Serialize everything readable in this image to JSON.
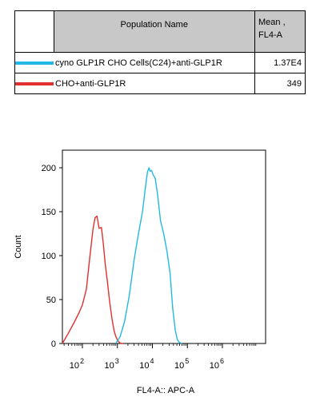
{
  "legend": {
    "header_name": "Population Name",
    "header_mean_line1": "Mean ,",
    "header_mean_line2": "FL4-A",
    "rows": [
      {
        "name": "cyno GLP1R CHO Cells(C24)+anti-GLP1R",
        "mean": "1.37E4",
        "color": "#22b8e6"
      },
      {
        "name": "CHO+anti-GLP1R",
        "mean": "349",
        "color": "#e03030"
      }
    ]
  },
  "chart_data": {
    "type": "line",
    "xlabel": "FL4-A:: APC-A",
    "ylabel": "Count",
    "x_scale": "log",
    "xlim": [
      10,
      1000000
    ],
    "ylim": [
      0,
      220
    ],
    "x_tick_labels": [
      {
        "base": "10",
        "exp": "2"
      },
      {
        "base": "10",
        "exp": "3"
      },
      {
        "base": "10",
        "exp": "4"
      },
      {
        "base": "10",
        "exp": "5"
      },
      {
        "base": "10",
        "exp": "6"
      }
    ],
    "x_tick_values": [
      100,
      1000,
      10000,
      100000,
      1000000
    ],
    "y_ticks": [
      0,
      50,
      100,
      150,
      200
    ],
    "series": [
      {
        "name": "CHO+anti-GLP1R",
        "color": "#e03030",
        "x": [
          20,
          40,
          60,
          80,
          100,
          130,
          160,
          200,
          230,
          260,
          300,
          350,
          400,
          450,
          520,
          600,
          700,
          800,
          900,
          1000,
          1150,
          1300,
          1500
        ],
        "y": [
          0,
          12,
          25,
          35,
          44,
          62,
          95,
          130,
          143,
          145,
          131,
          132,
          112,
          90,
          70,
          48,
          28,
          15,
          8,
          4,
          1,
          0,
          0
        ]
      },
      {
        "name": "cyno GLP1R CHO Cells(C24)+anti-GLP1R",
        "color": "#22b8e6",
        "x": [
          900,
          1200,
          1600,
          2200,
          3000,
          4000,
          5200,
          6200,
          7200,
          8000,
          8600,
          9500,
          10500,
          12000,
          14000,
          17000,
          21000,
          26000,
          32000,
          38000,
          45000,
          52000,
          60000,
          70000
        ],
        "y": [
          0,
          8,
          25,
          55,
          95,
          125,
          150,
          175,
          195,
          200,
          196,
          197,
          192,
          188,
          170,
          140,
          125,
          105,
          80,
          40,
          15,
          4,
          1,
          0
        ]
      }
    ]
  }
}
